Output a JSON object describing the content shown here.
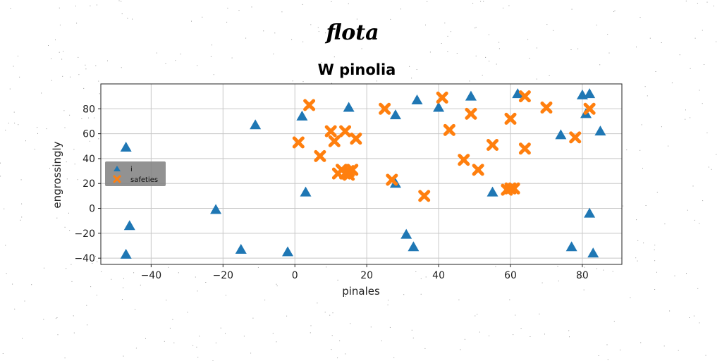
{
  "figure": {
    "suptitle": "flota"
  },
  "chart_data": {
    "type": "scatter",
    "title": "W pinolia",
    "xlabel": "pinales",
    "ylabel": "engrossingly",
    "xlim": [
      -54,
      91
    ],
    "ylim": [
      -45,
      100
    ],
    "xticks": [
      -40,
      -20,
      0,
      20,
      40,
      60,
      80
    ],
    "yticks": [
      -40,
      -20,
      0,
      20,
      40,
      60,
      80
    ],
    "grid": true,
    "legend_position": "center-left",
    "series": [
      {
        "name": "i",
        "marker": "triangle",
        "color": "#1f77b4",
        "x": [
          -47,
          -46,
          -47,
          -22,
          -15,
          -11,
          -2,
          2,
          3,
          15,
          28,
          28,
          31,
          33,
          34,
          40,
          49,
          55,
          62,
          74,
          77,
          80,
          81,
          82,
          82,
          83,
          85
        ],
        "y": [
          49,
          -14,
          -37,
          -1,
          -33,
          67,
          -35,
          74,
          13,
          81,
          75,
          20,
          -21,
          -31,
          87,
          81,
          90,
          13,
          92,
          59,
          -31,
          91,
          76,
          92,
          -4,
          -36,
          62
        ]
      },
      {
        "name": "safeties",
        "marker": "x",
        "color": "#ff7f0e",
        "x": [
          1,
          4,
          7,
          10,
          11,
          12,
          13,
          14,
          14,
          15,
          15,
          16,
          17,
          25,
          27,
          36,
          41,
          43,
          47,
          49,
          51,
          55,
          59,
          60,
          60,
          61,
          64,
          64,
          70,
          78,
          82
        ],
        "y": [
          53,
          83,
          42,
          62,
          54,
          28,
          31,
          28,
          62,
          30,
          27,
          31,
          56,
          80,
          23,
          10,
          89,
          63,
          39,
          76,
          31,
          51,
          15,
          72,
          16,
          16,
          90,
          48,
          81,
          57,
          80
        ]
      }
    ]
  }
}
